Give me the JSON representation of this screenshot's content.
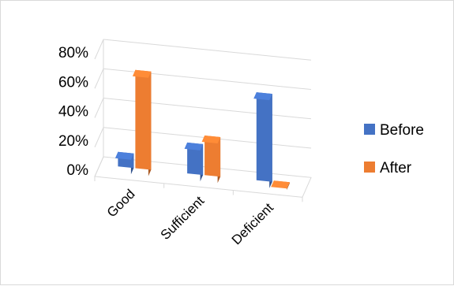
{
  "chart_data": {
    "type": "bar",
    "variant": "3d-clustered-column",
    "categories": [
      "Good",
      "Sufficient",
      "Deficient"
    ],
    "series": [
      {
        "name": "Before",
        "values": [
          10,
          21,
          60
        ],
        "color": "#4472c4"
      },
      {
        "name": "After",
        "values": [
          67,
          27,
          1
        ],
        "color": "#ed7d31"
      }
    ],
    "y_ticks": [
      "0%",
      "20%",
      "40%",
      "60%",
      "80%"
    ],
    "ylim": [
      0,
      80
    ],
    "y_unit": "%",
    "grid": true,
    "legend": {
      "position": "right",
      "entries": [
        "Before",
        "After"
      ]
    }
  }
}
